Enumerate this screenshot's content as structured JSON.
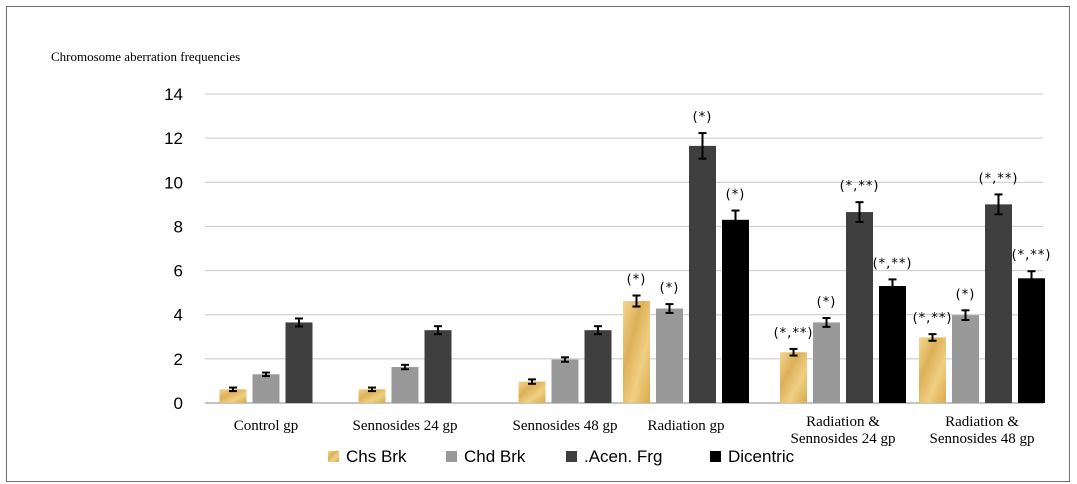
{
  "chart_data": {
    "type": "bar",
    "ylabel": "Chromosome aberration frequencies",
    "ylim": [
      0,
      14
    ],
    "yticks": [
      0,
      2,
      4,
      6,
      8,
      10,
      12,
      14
    ],
    "grid": true,
    "legend_position": "bottom",
    "categories": [
      [
        "Control gp"
      ],
      [
        "Sennosides 24  gp"
      ],
      [
        "Sennosides 48 gp"
      ],
      [
        "Radiation gp"
      ],
      [
        "Radiation &",
        "Sennosides 24 gp"
      ],
      [
        "Radiation &",
        "Sennosides 48 gp"
      ]
    ],
    "series": [
      {
        "name": "Chs Brk",
        "color": "#e8c176",
        "values": [
          0.62,
          0.62,
          0.97,
          4.62,
          2.3,
          2.97
        ],
        "errors": [
          0.08,
          0.08,
          0.1,
          0.25,
          0.15,
          0.15
        ],
        "annotations": [
          "",
          "",
          "",
          "(*)",
          "(*,**)",
          "(*,**)"
        ]
      },
      {
        "name": "Chd Brk",
        "color": "#999999",
        "values": [
          1.3,
          1.63,
          1.97,
          4.28,
          3.65,
          3.98
        ],
        "errors": [
          0.08,
          0.1,
          0.1,
          0.2,
          0.2,
          0.22
        ],
        "annotations": [
          "",
          "",
          "",
          "(*)",
          "(*)",
          "(*)"
        ]
      },
      {
        "name": ".Acen. Frg",
        "color": "#3f3f3f",
        "values": [
          3.65,
          3.3,
          3.3,
          11.65,
          8.65,
          9.0
        ],
        "errors": [
          0.18,
          0.18,
          0.18,
          0.58,
          0.45,
          0.45
        ],
        "annotations": [
          "",
          "",
          "",
          "(*)",
          "(*,**)",
          "(*,**)"
        ]
      },
      {
        "name": "Dicentric",
        "color": "#000000",
        "values": [
          null,
          null,
          null,
          8.3,
          5.3,
          5.65
        ],
        "errors": [
          null,
          null,
          null,
          0.42,
          0.3,
          0.32
        ],
        "annotations": [
          "",
          "",
          "",
          "(*)",
          "(*,**)",
          "(*,**)"
        ]
      }
    ]
  }
}
